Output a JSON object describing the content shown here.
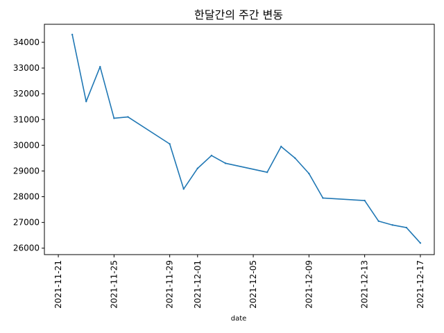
{
  "chart_data": {
    "type": "line",
    "title": "한달간의 주간 변동",
    "xlabel": "date",
    "ylabel": "",
    "x_tick_labels": [
      "2021-11-21",
      "2021-11-25",
      "2021-11-29",
      "2021-12-01",
      "2021-12-05",
      "2021-12-09",
      "2021-12-13",
      "2021-12-17"
    ],
    "y_tick_labels": [
      "26000",
      "27000",
      "28000",
      "29000",
      "30000",
      "31000",
      "32000",
      "33000",
      "34000"
    ],
    "xlim": [
      "2021-11-20",
      "2021-12-18"
    ],
    "ylim": [
      25750,
      34700
    ],
    "grid": false,
    "line_color": "#1f77b4",
    "series": [
      {
        "x": [
          "2021-11-22",
          "2021-11-23",
          "2021-11-24",
          "2021-11-25",
          "2021-11-26",
          "2021-11-29",
          "2021-11-30",
          "2021-12-01",
          "2021-12-02",
          "2021-12-03",
          "2021-12-06",
          "2021-12-07",
          "2021-12-08",
          "2021-12-09",
          "2021-12-10",
          "2021-12-13",
          "2021-12-14",
          "2021-12-15",
          "2021-12-16",
          "2021-12-17"
        ],
        "y": [
          34300,
          31700,
          33050,
          31050,
          31100,
          30050,
          28300,
          29100,
          29600,
          29300,
          28950,
          29950,
          29500,
          28900,
          27950,
          27850,
          27050,
          26900,
          26800,
          26200
        ]
      }
    ]
  }
}
